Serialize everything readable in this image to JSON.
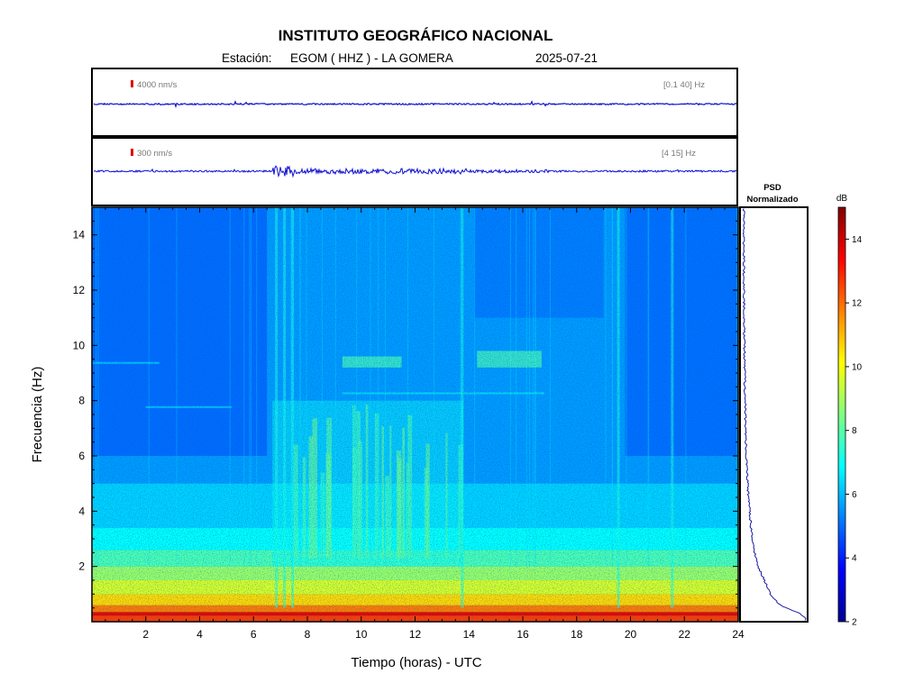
{
  "header": {
    "title": "INSTITUTO GEOGRÁFICO NACIONAL",
    "station_label": "Estación:",
    "station": "EGOM ( HHZ ) - LA GOMERA",
    "date": "2025-07-21"
  },
  "traces": [
    {
      "scale_label": "4000 nm/s",
      "band_label": "[0.1 40] Hz"
    },
    {
      "scale_label": "300 nm/s",
      "band_label": "[4 15] Hz"
    }
  ],
  "psd": {
    "title_line1": "PSD",
    "title_line2": "Normalizado"
  },
  "colorbar": {
    "unit": "dB",
    "ticks": [
      2,
      4,
      6,
      8,
      10,
      12,
      14
    ],
    "range": [
      2,
      15
    ]
  },
  "colors": {
    "frame": "#000000",
    "trace": "#1010d0",
    "scale_marker": "#dd0000",
    "psd_curve": "#1a1aa0"
  },
  "chart_data": {
    "type": "heatmap",
    "xlabel": "Tiempo (horas) - UTC",
    "ylabel": "Frecuencia  (Hz)",
    "x_ticks": [
      2,
      4,
      6,
      8,
      10,
      12,
      14,
      16,
      18,
      20,
      22,
      24
    ],
    "y_ticks": [
      2,
      4,
      6,
      8,
      10,
      12,
      14
    ],
    "xlim": [
      0,
      24
    ],
    "ylim": [
      0,
      15
    ],
    "colorscale": "jet",
    "background_level_db": {
      "0-0.5Hz": 12,
      "0.5-1Hz": 10.5,
      "1-2Hz": 9,
      "2-3Hz": 7.5,
      "3-15Hz": 5.5
    },
    "active_period_hours": [
      6.7,
      13.8
    ],
    "harmonic_band_hz": [
      9.2,
      9.6
    ],
    "psd_profile": [
      {
        "freq": 0.1,
        "value": 1.0
      },
      {
        "freq": 0.3,
        "value": 0.9
      },
      {
        "freq": 0.6,
        "value": 0.6
      },
      {
        "freq": 1.0,
        "value": 0.45
      },
      {
        "freq": 1.5,
        "value": 0.35
      },
      {
        "freq": 2.0,
        "value": 0.25
      },
      {
        "freq": 3.0,
        "value": 0.16
      },
      {
        "freq": 4.0,
        "value": 0.12
      },
      {
        "freq": 5.0,
        "value": 0.09
      },
      {
        "freq": 6.0,
        "value": 0.07
      },
      {
        "freq": 8.0,
        "value": 0.05
      },
      {
        "freq": 10.0,
        "value": 0.04
      },
      {
        "freq": 12.0,
        "value": 0.035
      },
      {
        "freq": 14.0,
        "value": 0.03
      },
      {
        "freq": 15.0,
        "value": 0.03
      }
    ]
  }
}
